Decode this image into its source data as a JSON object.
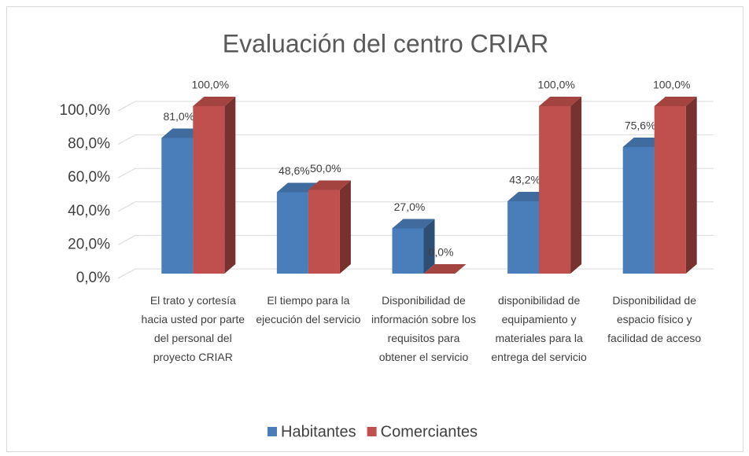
{
  "chart_data": {
    "type": "bar3d",
    "title": "Evaluación del centro CRIAR",
    "categories": [
      "El trato y cortesía hacia usted por parte del personal del proyecto CRIAR",
      "El tiempo para la ejecución del servicio",
      "Disponibilidad de información sobre los requisitos para obtener el servicio",
      "disponibilidad de equipamiento y materiales para la entrega del servicio",
      "Disponibilidad de espacio físico y facilidad de acceso"
    ],
    "series": [
      {
        "name": "Habitantes",
        "color": "#4a7ebb",
        "values": [
          81.0,
          48.6,
          27.0,
          43.2,
          75.6
        ],
        "value_labels": [
          "81,0%",
          "48,6%",
          "27,0%",
          "43,2%",
          "75,6%"
        ]
      },
      {
        "name": "Comerciantes",
        "color": "#c0504d",
        "values": [
          100.0,
          50.0,
          0.0,
          100.0,
          100.0
        ],
        "value_labels": [
          "100,0%",
          "50,0%",
          "0,0%",
          "100,0%",
          "100,0%"
        ]
      }
    ],
    "ylim": [
      0,
      100
    ],
    "yticks": [
      {
        "value": 0,
        "label": "0,0%"
      },
      {
        "value": 20,
        "label": "20,0%"
      },
      {
        "value": 40,
        "label": "40,0%"
      },
      {
        "value": 60,
        "label": "60,0%"
      },
      {
        "value": 80,
        "label": "80,0%"
      },
      {
        "value": 100,
        "label": "100,0%"
      }
    ],
    "grid": true,
    "legend": "bottom"
  }
}
